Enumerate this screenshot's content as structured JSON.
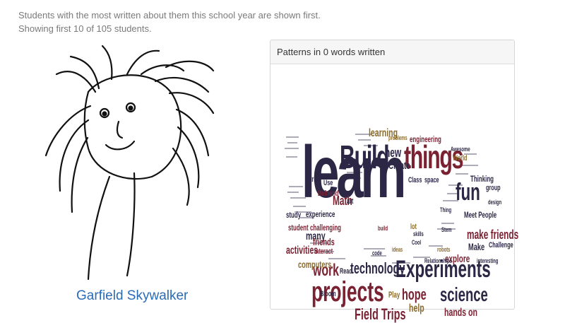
{
  "intro": {
    "line1": "Students with the most written about them this school year are shown first.",
    "line2": "Showing first 10 of 105 students."
  },
  "student": {
    "name": "Garfield Skywalker"
  },
  "panel": {
    "heading": "Patterns in 0 words written",
    "words": [
      {
        "text": "learn",
        "color": "#2d2746"
      },
      {
        "text": "Build",
        "color": "#2d2746"
      },
      {
        "text": "things",
        "color": "#7a2232"
      },
      {
        "text": "Experiments",
        "color": "#2d2746"
      },
      {
        "text": "projects",
        "color": "#7a2232"
      },
      {
        "text": "science",
        "color": "#2d2746"
      },
      {
        "text": "fun",
        "color": "#2d2746"
      },
      {
        "text": "technology",
        "color": "#2d2746"
      },
      {
        "text": "work",
        "color": "#7a2232"
      },
      {
        "text": "hope",
        "color": "#7a2232"
      },
      {
        "text": "Field Trips",
        "color": "#7a2232"
      },
      {
        "text": "make friends",
        "color": "#7a2232"
      },
      {
        "text": "new",
        "color": "#2d2746"
      },
      {
        "text": "learning",
        "color": "#8a6a2a"
      },
      {
        "text": "Create",
        "color": "#2d2746"
      },
      {
        "text": "engineering",
        "color": "#7a2232"
      },
      {
        "text": "Math",
        "color": "#7a2232"
      },
      {
        "text": "many",
        "color": "#2d2746"
      },
      {
        "text": "activities",
        "color": "#7a2232"
      },
      {
        "text": "computers",
        "color": "#8a6a2a"
      },
      {
        "text": "explore",
        "color": "#7a2232"
      },
      {
        "text": "hands on",
        "color": "#7a2232"
      },
      {
        "text": "help",
        "color": "#8a6a2a"
      },
      {
        "text": "Play",
        "color": "#8a6a2a"
      },
      {
        "text": "Make",
        "color": "#2d2746"
      },
      {
        "text": "Challenge",
        "color": "#2d2746"
      },
      {
        "text": "Meet People",
        "color": "#2d2746"
      },
      {
        "text": "friends",
        "color": "#7a2232"
      },
      {
        "text": "challenging",
        "color": "#7a2232"
      },
      {
        "text": "experience",
        "color": "#2d2746"
      },
      {
        "text": "student",
        "color": "#7a2232"
      },
      {
        "text": "study",
        "color": "#2d2746"
      },
      {
        "text": "Class",
        "color": "#2d2746"
      },
      {
        "text": "space",
        "color": "#2d2746"
      },
      {
        "text": "Thinking",
        "color": "#2d2746"
      },
      {
        "text": "group",
        "color": "#2d2746"
      },
      {
        "text": "World",
        "color": "#8a6a2a"
      },
      {
        "text": "trips",
        "color": "#2d2746"
      },
      {
        "text": "Use",
        "color": "#2d2746"
      },
      {
        "text": "Befriend",
        "color": "#7a2232"
      },
      {
        "text": "art",
        "color": "#2d2746"
      },
      {
        "text": "interact",
        "color": "#7a2232"
      },
      {
        "text": "Read",
        "color": "#2d2746"
      },
      {
        "text": "lot",
        "color": "#8a6a2a"
      },
      {
        "text": "Bloom",
        "color": "#2d2746"
      },
      {
        "text": "Thing",
        "color": "#2d2746"
      },
      {
        "text": "Stem",
        "color": "#2d2746"
      },
      {
        "text": "Awesome",
        "color": "#2d2746"
      },
      {
        "text": "design",
        "color": "#2d2746"
      },
      {
        "text": "Relationships",
        "color": "#2d2746"
      },
      {
        "text": "Cool",
        "color": "#2d2746"
      },
      {
        "text": "robots",
        "color": "#8a6a2a"
      },
      {
        "text": "skills",
        "color": "#2d2746"
      },
      {
        "text": "ideas",
        "color": "#8a6a2a"
      },
      {
        "text": "code",
        "color": "#2d2746"
      },
      {
        "text": "build",
        "color": "#7a2232"
      },
      {
        "text": "problems",
        "color": "#8a6a2a"
      },
      {
        "text": "interesting",
        "color": "#2d2746"
      }
    ]
  }
}
